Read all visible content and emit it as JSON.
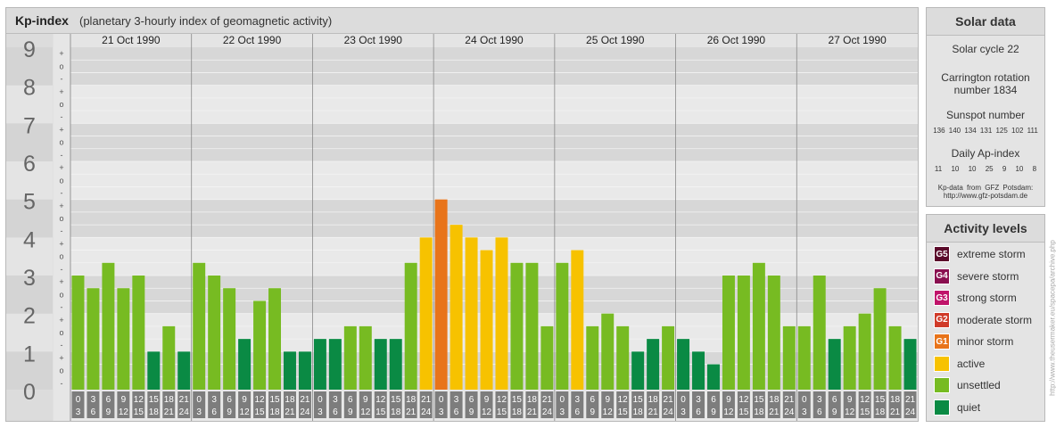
{
  "title": "Kp-index",
  "subtitle": "(planetary 3-hourly index of geomagnetic activity)",
  "chart_data": {
    "type": "bar",
    "y_axis": {
      "range": [
        0,
        9
      ],
      "major_ticks": [
        "0",
        "1",
        "2",
        "3",
        "4",
        "5",
        "6",
        "7",
        "8",
        "9"
      ],
      "minor_marks": [
        "-",
        "o",
        "+"
      ]
    },
    "days": [
      "21 Oct 1990",
      "22 Oct 1990",
      "23 Oct 1990",
      "24 Oct 1990",
      "25 Oct 1990",
      "26 Oct 1990",
      "27 Oct 1990"
    ],
    "interval_start_labels": [
      "0",
      "3",
      "6",
      "9",
      "12",
      "15",
      "18",
      "21"
    ],
    "interval_end_labels": [
      "3",
      "6",
      "9",
      "12",
      "15",
      "18",
      "21",
      "24"
    ],
    "values": [
      [
        3.0,
        2.667,
        3.333,
        2.667,
        3.0,
        1.0,
        1.667,
        1.0
      ],
      [
        3.333,
        3.0,
        2.667,
        1.333,
        2.333,
        2.667,
        1.0,
        1.0
      ],
      [
        1.333,
        1.333,
        1.667,
        1.667,
        1.333,
        1.333,
        3.333,
        4.0
      ],
      [
        5.0,
        4.333,
        4.0,
        3.667,
        4.0,
        3.333,
        3.333,
        1.667
      ],
      [
        3.333,
        3.667,
        1.667,
        2.0,
        1.667,
        1.0,
        1.333,
        1.667
      ],
      [
        1.333,
        1.0,
        0.667,
        3.0,
        3.0,
        3.333,
        3.0,
        1.667
      ],
      [
        1.667,
        3.0,
        1.333,
        1.667,
        2.0,
        2.667,
        1.667,
        1.333
      ]
    ],
    "level_colors": {
      "quiet": "#0a8a44",
      "unsettled": "#77bb22",
      "active": "#f7c200",
      "minor_storm": "#e8741a"
    },
    "grid": true
  },
  "solar_data": {
    "heading": "Solar data",
    "solar_cycle": "Solar cycle 22",
    "carrington_line1": "Carrington rotation",
    "carrington_line2": "number 1834",
    "sunspot_label": "Sunspot number",
    "sunspot_values": "136 140 134 131 125 102 111",
    "ap_label": "Daily Ap-index",
    "ap_values": "11 10 10 25 9 10 8",
    "source_line1": "Kp-data from GFZ Potsdam:",
    "source_line2": "http://www.gfz-potsdam.de"
  },
  "activity_levels": {
    "heading": "Activity levels",
    "items": [
      {
        "badge": "G5",
        "label": "extreme storm",
        "color": "#5a0a2a"
      },
      {
        "badge": "G4",
        "label": "severe storm",
        "color": "#8a1050"
      },
      {
        "badge": "G3",
        "label": "strong storm",
        "color": "#c0146a"
      },
      {
        "badge": "G2",
        "label": "moderate storm",
        "color": "#d03a28"
      },
      {
        "badge": "G1",
        "label": "minor storm",
        "color": "#e8741a"
      },
      {
        "badge": "",
        "label": "active",
        "color": "#f7c200"
      },
      {
        "badge": "",
        "label": "unsettled",
        "color": "#77bb22"
      },
      {
        "badge": "",
        "label": "quiet",
        "color": "#0a8a44"
      }
    ]
  },
  "credit": "http://www.theusermaker.eu/spacepa/archive.php"
}
